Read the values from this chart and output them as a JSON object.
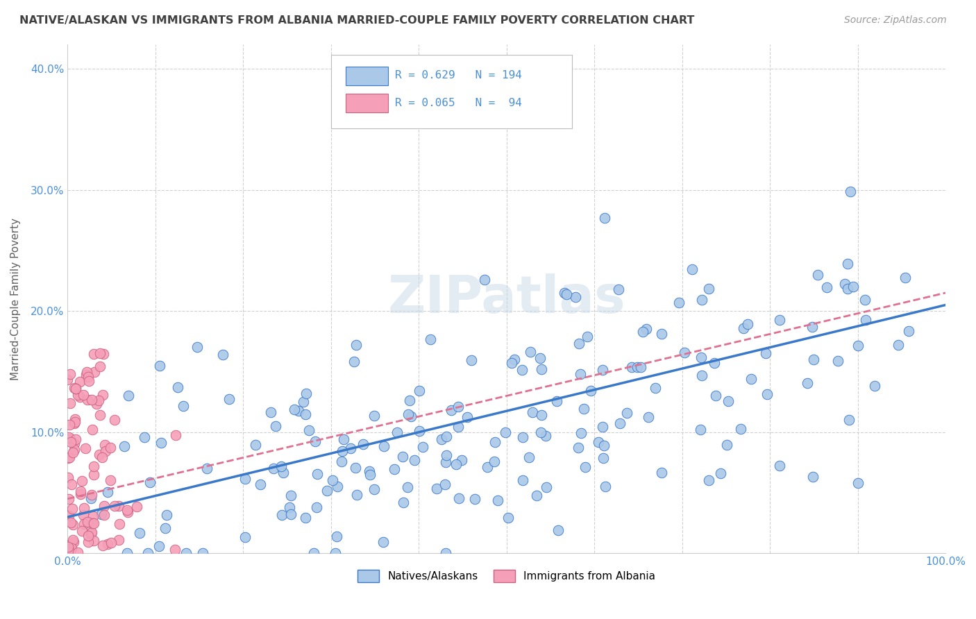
{
  "title": "NATIVE/ALASKAN VS IMMIGRANTS FROM ALBANIA MARRIED-COUPLE FAMILY POVERTY CORRELATION CHART",
  "source": "Source: ZipAtlas.com",
  "ylabel": "Married-Couple Family Poverty",
  "xlim": [
    0,
    1.0
  ],
  "ylim": [
    0,
    0.42
  ],
  "xticks": [
    0.0,
    0.1,
    0.2,
    0.3,
    0.4,
    0.5,
    0.6,
    0.7,
    0.8,
    0.9,
    1.0
  ],
  "xticklabels": [
    "0.0%",
    "",
    "",
    "",
    "",
    "",
    "",
    "",
    "",
    "",
    "100.0%"
  ],
  "yticks": [
    0.0,
    0.1,
    0.2,
    0.3,
    0.4
  ],
  "yticklabels": [
    "",
    "10.0%",
    "20.0%",
    "30.0%",
    "40.0%"
  ],
  "native_R": 0.629,
  "native_N": 194,
  "albania_R": 0.065,
  "albania_N": 94,
  "native_color": "#aac8e8",
  "albania_color": "#f5a0b8",
  "native_line_color": "#3a78c9",
  "albania_line_color": "#e07090",
  "watermark": "ZIPatlas",
  "background_color": "#ffffff",
  "grid_color": "#d0d0d0",
  "title_color": "#404040",
  "axis_label_color": "#606060",
  "tick_color": "#4a90d9",
  "native_line_start_y": 0.03,
  "native_line_end_y": 0.205,
  "albania_line_start_x": 0.0,
  "albania_line_start_y": 0.045,
  "albania_line_end_x": 1.0,
  "albania_line_end_y": 0.215
}
